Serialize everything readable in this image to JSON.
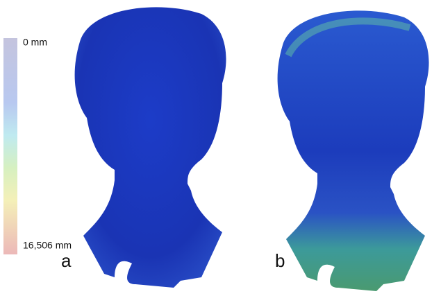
{
  "colorbar": {
    "top_label": "0 mm",
    "bottom_label": "16,506 mm"
  },
  "panels": [
    {
      "label": "a"
    },
    {
      "label": "b"
    }
  ]
}
